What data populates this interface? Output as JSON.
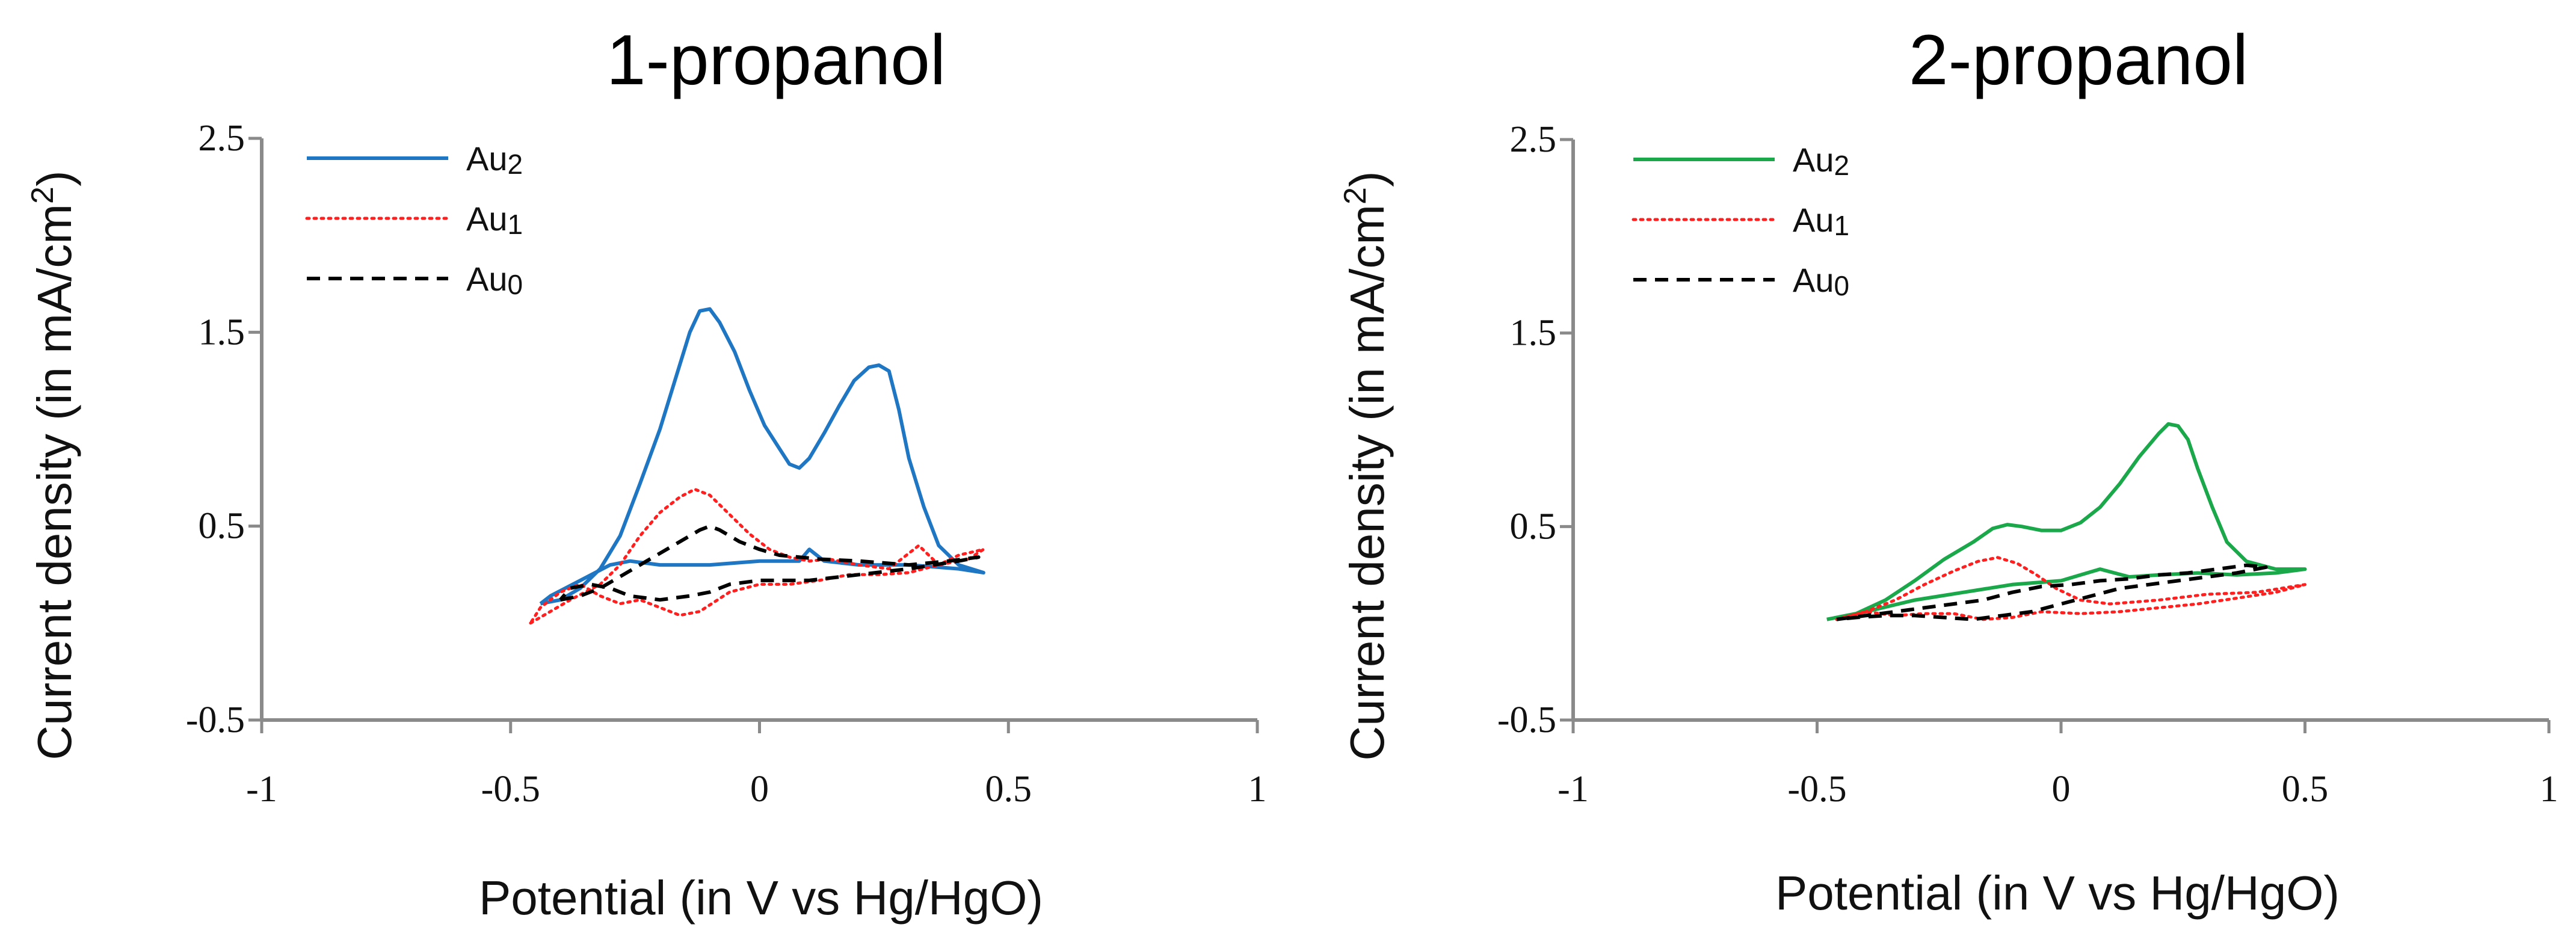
{
  "colors": {
    "Au2_left": "#1f77c4",
    "Au2_right": "#1aa84a",
    "Au1": "#ff1f1f",
    "Au0": "#000000",
    "axis": "#8a8a8a"
  },
  "chart_data": [
    {
      "type": "line",
      "title": "1-propanol",
      "xlabel": "Potential (in V vs Hg/HgO)",
      "ylabel": "Current density (in mA/cm",
      "ylabel_sup": "2",
      "ylabel_end": ")",
      "xlim": [
        -1,
        1
      ],
      "ylim": [
        -0.5,
        2.5
      ],
      "xticks": [
        "-1",
        "-0.5",
        "0",
        "0.5",
        "1"
      ],
      "yticks": [
        "-0.5",
        "0.5",
        "1.5",
        "2.5"
      ],
      "legend": {
        "position": "top-left"
      },
      "series": [
        {
          "name": "Au",
          "sub": "2",
          "color": "#1f77c4",
          "dash": "solid",
          "points": [
            [
              -0.44,
              0.1
            ],
            [
              -0.4,
              0.12
            ],
            [
              -0.36,
              0.18
            ],
            [
              -0.32,
              0.28
            ],
            [
              -0.28,
              0.45
            ],
            [
              -0.24,
              0.72
            ],
            [
              -0.2,
              1.0
            ],
            [
              -0.17,
              1.25
            ],
            [
              -0.14,
              1.5
            ],
            [
              -0.12,
              1.61
            ],
            [
              -0.1,
              1.62
            ],
            [
              -0.08,
              1.55
            ],
            [
              -0.05,
              1.4
            ],
            [
              -0.02,
              1.2
            ],
            [
              0.01,
              1.02
            ],
            [
              0.04,
              0.9
            ],
            [
              0.06,
              0.82
            ],
            [
              0.08,
              0.8
            ],
            [
              0.1,
              0.85
            ],
            [
              0.13,
              0.98
            ],
            [
              0.16,
              1.12
            ],
            [
              0.19,
              1.25
            ],
            [
              0.22,
              1.32
            ],
            [
              0.24,
              1.33
            ],
            [
              0.26,
              1.3
            ],
            [
              0.28,
              1.1
            ],
            [
              0.3,
              0.85
            ],
            [
              0.33,
              0.6
            ],
            [
              0.36,
              0.4
            ],
            [
              0.4,
              0.3
            ],
            [
              0.45,
              0.26
            ],
            [
              0.4,
              0.28
            ],
            [
              0.3,
              0.3
            ],
            [
              0.2,
              0.3
            ],
            [
              0.13,
              0.32
            ],
            [
              0.1,
              0.38
            ],
            [
              0.08,
              0.32
            ],
            [
              0.0,
              0.32
            ],
            [
              -0.1,
              0.3
            ],
            [
              -0.2,
              0.3
            ],
            [
              -0.26,
              0.32
            ],
            [
              -0.3,
              0.3
            ],
            [
              -0.36,
              0.22
            ],
            [
              -0.42,
              0.14
            ],
            [
              -0.44,
              0.1
            ]
          ]
        },
        {
          "name": "Au",
          "sub": "1",
          "color": "#ff1f1f",
          "dash": "dotted",
          "points": [
            [
              -0.46,
              0.0
            ],
            [
              -0.42,
              0.06
            ],
            [
              -0.38,
              0.12
            ],
            [
              -0.32,
              0.2
            ],
            [
              -0.28,
              0.3
            ],
            [
              -0.24,
              0.45
            ],
            [
              -0.2,
              0.57
            ],
            [
              -0.16,
              0.65
            ],
            [
              -0.13,
              0.69
            ],
            [
              -0.1,
              0.66
            ],
            [
              -0.06,
              0.56
            ],
            [
              -0.02,
              0.46
            ],
            [
              0.02,
              0.38
            ],
            [
              0.06,
              0.34
            ],
            [
              0.1,
              0.32
            ],
            [
              0.14,
              0.33
            ],
            [
              0.2,
              0.3
            ],
            [
              0.26,
              0.28
            ],
            [
              0.32,
              0.4
            ],
            [
              0.36,
              0.3
            ],
            [
              0.4,
              0.35
            ],
            [
              0.45,
              0.38
            ],
            [
              0.42,
              0.33
            ],
            [
              0.36,
              0.3
            ],
            [
              0.3,
              0.26
            ],
            [
              0.24,
              0.25
            ],
            [
              0.18,
              0.25
            ],
            [
              0.12,
              0.22
            ],
            [
              0.06,
              0.2
            ],
            [
              0.0,
              0.2
            ],
            [
              -0.06,
              0.16
            ],
            [
              -0.12,
              0.06
            ],
            [
              -0.16,
              0.04
            ],
            [
              -0.2,
              0.08
            ],
            [
              -0.24,
              0.12
            ],
            [
              -0.28,
              0.1
            ],
            [
              -0.32,
              0.14
            ],
            [
              -0.36,
              0.2
            ],
            [
              -0.4,
              0.16
            ],
            [
              -0.44,
              0.08
            ],
            [
              -0.46,
              0.0
            ]
          ]
        },
        {
          "name": "Au",
          "sub": "0",
          "color": "#000000",
          "dash": "dashed",
          "points": [
            [
              -0.4,
              0.12
            ],
            [
              -0.36,
              0.14
            ],
            [
              -0.32,
              0.18
            ],
            [
              -0.28,
              0.24
            ],
            [
              -0.24,
              0.3
            ],
            [
              -0.2,
              0.36
            ],
            [
              -0.16,
              0.42
            ],
            [
              -0.12,
              0.48
            ],
            [
              -0.1,
              0.5
            ],
            [
              -0.08,
              0.48
            ],
            [
              -0.04,
              0.42
            ],
            [
              0.0,
              0.38
            ],
            [
              0.04,
              0.35
            ],
            [
              0.08,
              0.34
            ],
            [
              0.12,
              0.33
            ],
            [
              0.2,
              0.32
            ],
            [
              0.3,
              0.3
            ],
            [
              0.38,
              0.32
            ],
            [
              0.44,
              0.34
            ],
            [
              0.4,
              0.32
            ],
            [
              0.3,
              0.28
            ],
            [
              0.2,
              0.25
            ],
            [
              0.1,
              0.22
            ],
            [
              0.0,
              0.22
            ],
            [
              -0.06,
              0.2
            ],
            [
              -0.1,
              0.16
            ],
            [
              -0.14,
              0.14
            ],
            [
              -0.2,
              0.12
            ],
            [
              -0.26,
              0.14
            ],
            [
              -0.3,
              0.18
            ],
            [
              -0.34,
              0.2
            ],
            [
              -0.38,
              0.18
            ],
            [
              -0.4,
              0.12
            ]
          ]
        }
      ]
    },
    {
      "type": "line",
      "title": "2-propanol",
      "xlabel": "Potential (in V vs Hg/HgO)",
      "ylabel": "Current density (in mA/cm",
      "ylabel_sup": "2",
      "ylabel_end": ")",
      "xlim": [
        -1,
        1
      ],
      "ylim": [
        -0.5,
        2.5
      ],
      "xticks": [
        "-1",
        "-0.5",
        "0",
        "0.5",
        "1"
      ],
      "yticks": [
        "-0.5",
        "0.5",
        "1.5",
        "2.5"
      ],
      "legend": {
        "position": "top-left"
      },
      "series": [
        {
          "name": "Au",
          "sub": "2",
          "color": "#1aa84a",
          "dash": "solid",
          "points": [
            [
              -0.48,
              0.02
            ],
            [
              -0.42,
              0.05
            ],
            [
              -0.36,
              0.12
            ],
            [
              -0.3,
              0.22
            ],
            [
              -0.24,
              0.33
            ],
            [
              -0.18,
              0.42
            ],
            [
              -0.14,
              0.49
            ],
            [
              -0.11,
              0.51
            ],
            [
              -0.08,
              0.5
            ],
            [
              -0.04,
              0.48
            ],
            [
              0.0,
              0.48
            ],
            [
              0.04,
              0.52
            ],
            [
              0.08,
              0.6
            ],
            [
              0.12,
              0.72
            ],
            [
              0.16,
              0.86
            ],
            [
              0.2,
              0.98
            ],
            [
              0.22,
              1.03
            ],
            [
              0.24,
              1.02
            ],
            [
              0.26,
              0.95
            ],
            [
              0.28,
              0.8
            ],
            [
              0.31,
              0.6
            ],
            [
              0.34,
              0.42
            ],
            [
              0.38,
              0.32
            ],
            [
              0.44,
              0.28
            ],
            [
              0.5,
              0.28
            ],
            [
              0.44,
              0.26
            ],
            [
              0.36,
              0.25
            ],
            [
              0.28,
              0.26
            ],
            [
              0.2,
              0.25
            ],
            [
              0.14,
              0.24
            ],
            [
              0.08,
              0.28
            ],
            [
              0.04,
              0.25
            ],
            [
              0.0,
              0.22
            ],
            [
              -0.1,
              0.2
            ],
            [
              -0.2,
              0.16
            ],
            [
              -0.3,
              0.12
            ],
            [
              -0.4,
              0.06
            ],
            [
              -0.48,
              0.02
            ]
          ]
        },
        {
          "name": "Au",
          "sub": "1",
          "color": "#ff1f1f",
          "dash": "dotted",
          "points": [
            [
              -0.46,
              0.02
            ],
            [
              -0.4,
              0.06
            ],
            [
              -0.34,
              0.12
            ],
            [
              -0.28,
              0.2
            ],
            [
              -0.22,
              0.27
            ],
            [
              -0.17,
              0.32
            ],
            [
              -0.13,
              0.34
            ],
            [
              -0.09,
              0.31
            ],
            [
              -0.05,
              0.25
            ],
            [
              -0.01,
              0.18
            ],
            [
              0.04,
              0.12
            ],
            [
              0.1,
              0.1
            ],
            [
              0.2,
              0.12
            ],
            [
              0.3,
              0.15
            ],
            [
              0.4,
              0.16
            ],
            [
              0.5,
              0.2
            ],
            [
              0.44,
              0.16
            ],
            [
              0.36,
              0.13
            ],
            [
              0.28,
              0.1
            ],
            [
              0.2,
              0.08
            ],
            [
              0.12,
              0.06
            ],
            [
              0.04,
              0.05
            ],
            [
              -0.04,
              0.06
            ],
            [
              -0.1,
              0.03
            ],
            [
              -0.16,
              0.02
            ],
            [
              -0.22,
              0.05
            ],
            [
              -0.28,
              0.05
            ],
            [
              -0.34,
              0.04
            ],
            [
              -0.4,
              0.06
            ],
            [
              -0.46,
              0.02
            ]
          ]
        },
        {
          "name": "Au",
          "sub": "0",
          "color": "#000000",
          "dash": "dashed",
          "points": [
            [
              -0.46,
              0.02
            ],
            [
              -0.4,
              0.04
            ],
            [
              -0.34,
              0.06
            ],
            [
              -0.28,
              0.08
            ],
            [
              -0.22,
              0.1
            ],
            [
              -0.16,
              0.12
            ],
            [
              -0.1,
              0.16
            ],
            [
              -0.04,
              0.19
            ],
            [
              0.02,
              0.2
            ],
            [
              0.08,
              0.22
            ],
            [
              0.14,
              0.23
            ],
            [
              0.2,
              0.25
            ],
            [
              0.26,
              0.26
            ],
            [
              0.32,
              0.28
            ],
            [
              0.38,
              0.3
            ],
            [
              0.42,
              0.29
            ],
            [
              0.36,
              0.26
            ],
            [
              0.3,
              0.24
            ],
            [
              0.24,
              0.22
            ],
            [
              0.18,
              0.2
            ],
            [
              0.12,
              0.18
            ],
            [
              0.06,
              0.14
            ],
            [
              0.0,
              0.1
            ],
            [
              -0.06,
              0.06
            ],
            [
              -0.12,
              0.04
            ],
            [
              -0.18,
              0.02
            ],
            [
              -0.24,
              0.03
            ],
            [
              -0.3,
              0.04
            ],
            [
              -0.36,
              0.04
            ],
            [
              -0.42,
              0.03
            ],
            [
              -0.46,
              0.02
            ]
          ]
        }
      ]
    }
  ]
}
